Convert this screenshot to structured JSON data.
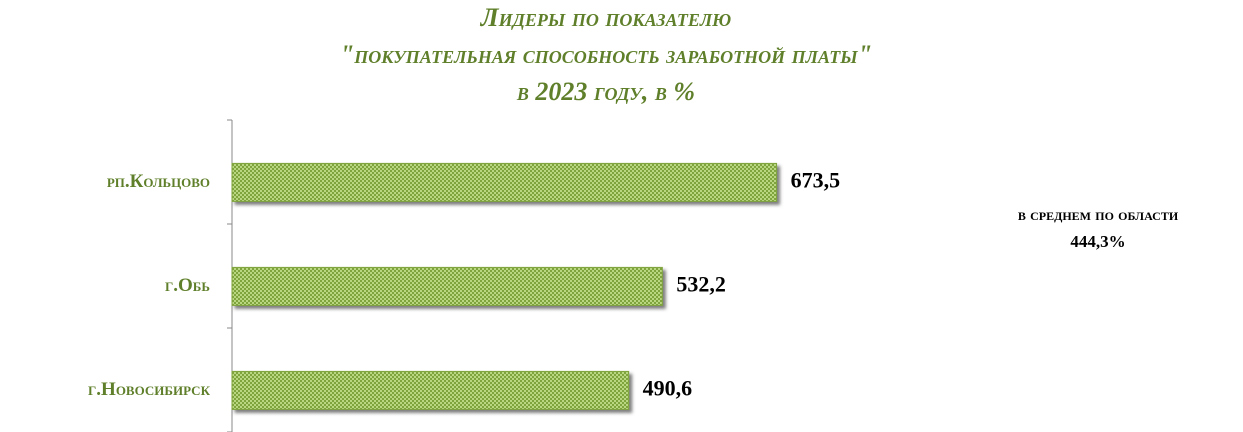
{
  "chart_data": {
    "type": "bar",
    "orientation": "horizontal",
    "title": [
      "Лидеры по показателю",
      "\"покупательная способность заработной платы\"",
      "в 2023 году, в %"
    ],
    "categories": [
      "рп.Кольцово",
      "г.Обь",
      "г.Новосибирск"
    ],
    "values": [
      673.5,
      532.2,
      490.6
    ],
    "value_labels": [
      "673,5",
      "532,2",
      "490,6"
    ],
    "color": "#9dbd5a",
    "xlim": [
      0,
      700
    ],
    "annotations": [
      "в среднем по области",
      "444,3%"
    ]
  }
}
